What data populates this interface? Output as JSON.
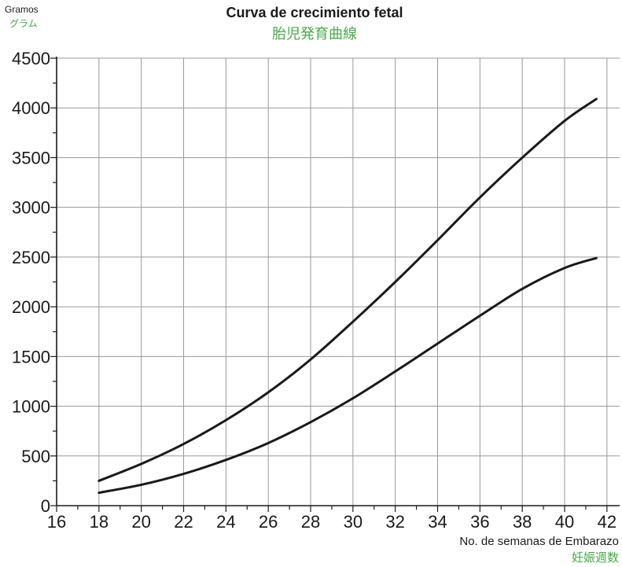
{
  "chart_data": {
    "type": "line",
    "title": "Curva de crecimiento fetal",
    "title_jp": "胎児発育曲線",
    "ylabel": "Gramos",
    "ylabel_jp": "グラム",
    "xlabel": "No. de semanas de Embarazo",
    "xlabel_jp": "妊娠週数",
    "xlim": [
      16,
      42.6
    ],
    "ylim": [
      0,
      4500
    ],
    "xticks": [
      16,
      18,
      20,
      22,
      24,
      26,
      28,
      30,
      32,
      34,
      36,
      38,
      40,
      42
    ],
    "yticks": [
      0,
      500,
      1000,
      1500,
      2000,
      2500,
      3000,
      3500,
      4000,
      4500
    ],
    "grid": true,
    "jp_color": "#4aa84a",
    "series": [
      {
        "x": [
          18,
          20,
          22,
          24,
          26,
          28,
          30,
          32,
          34,
          36,
          38,
          40,
          41.5
        ],
        "values": [
          250,
          420,
          620,
          860,
          1140,
          1470,
          1850,
          2250,
          2670,
          3100,
          3500,
          3870,
          4090
        ]
      },
      {
        "x": [
          18,
          20,
          22,
          24,
          26,
          28,
          30,
          32,
          34,
          36,
          38,
          40,
          41.5
        ],
        "values": [
          130,
          210,
          320,
          460,
          630,
          840,
          1080,
          1350,
          1630,
          1910,
          2180,
          2390,
          2490
        ]
      }
    ]
  }
}
